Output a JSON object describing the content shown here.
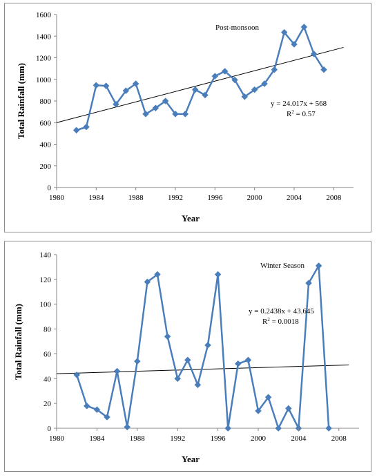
{
  "chart_data": [
    {
      "type": "line",
      "title": "Post-monsoon",
      "xlabel": "Year",
      "ylabel": "Total Rainfall (mm)",
      "xlim": [
        1980,
        2010
      ],
      "ylim": [
        0,
        1600
      ],
      "xticks": [
        1980,
        1984,
        1988,
        1992,
        1996,
        2000,
        2004,
        2008
      ],
      "yticks": [
        0,
        200,
        400,
        600,
        800,
        1000,
        1200,
        1400,
        1600
      ],
      "grid": false,
      "series": [
        {
          "x": [
            1982,
            1983,
            1984,
            1985,
            1986,
            1987,
            1988,
            1989,
            1990,
            1991,
            1992,
            1993,
            1994,
            1995,
            1996,
            1997,
            1998,
            1999,
            2000,
            2001,
            2002,
            2003,
            2004,
            2005,
            2006,
            2007
          ],
          "values": [
            530,
            560,
            945,
            940,
            770,
            895,
            960,
            680,
            735,
            800,
            680,
            680,
            905,
            855,
            1030,
            1075,
            995,
            840,
            905,
            960,
            1090,
            1435,
            1325,
            1485,
            1235,
            1090
          ],
          "color": "#4a7ebb",
          "marker": "diamond"
        }
      ],
      "trendline": {
        "slope": 24.017,
        "intercept_at_1980": 600,
        "x_range": [
          1980,
          2009
        ],
        "color": "#000000"
      },
      "annotations": {
        "label": "Post-monsoon",
        "equation": "y = 24.017x + 568",
        "r2_prefix": "R",
        "r2_suffix": " = 0.57"
      }
    },
    {
      "type": "line",
      "title": "Winter Season",
      "xlabel": "Year",
      "ylabel": "Total Rainfall (mm)",
      "xlim": [
        1980,
        2010
      ],
      "ylim": [
        0,
        140
      ],
      "xticks": [
        1980,
        1984,
        1988,
        1992,
        1996,
        2000,
        2004,
        2008
      ],
      "yticks": [
        0,
        20,
        40,
        60,
        80,
        100,
        120,
        140
      ],
      "grid": false,
      "series": [
        {
          "x": [
            1982,
            1983,
            1984,
            1985,
            1986,
            1987,
            1988,
            1989,
            1990,
            1991,
            1992,
            1993,
            1994,
            1995,
            1996,
            1997,
            1998,
            1999,
            2000,
            2001,
            2002,
            2003,
            2004,
            2005,
            2006,
            2007
          ],
          "values": [
            43,
            18,
            15,
            9,
            46,
            1,
            54,
            118,
            124,
            74,
            40,
            55,
            35,
            67,
            124,
            0,
            52,
            55,
            14,
            25,
            0,
            16,
            0,
            117,
            131,
            0
          ],
          "color": "#4a7ebb",
          "marker": "diamond"
        }
      ],
      "trendline": {
        "slope": 0.2438,
        "intercept_at_1980": 44,
        "x_range": [
          1980,
          2009
        ],
        "color": "#000000"
      },
      "annotations": {
        "label": "Winter Season",
        "equation": "y = 0.2438x + 43.645",
        "r2_prefix": "R",
        "r2_suffix": " = 0.0018"
      }
    }
  ]
}
